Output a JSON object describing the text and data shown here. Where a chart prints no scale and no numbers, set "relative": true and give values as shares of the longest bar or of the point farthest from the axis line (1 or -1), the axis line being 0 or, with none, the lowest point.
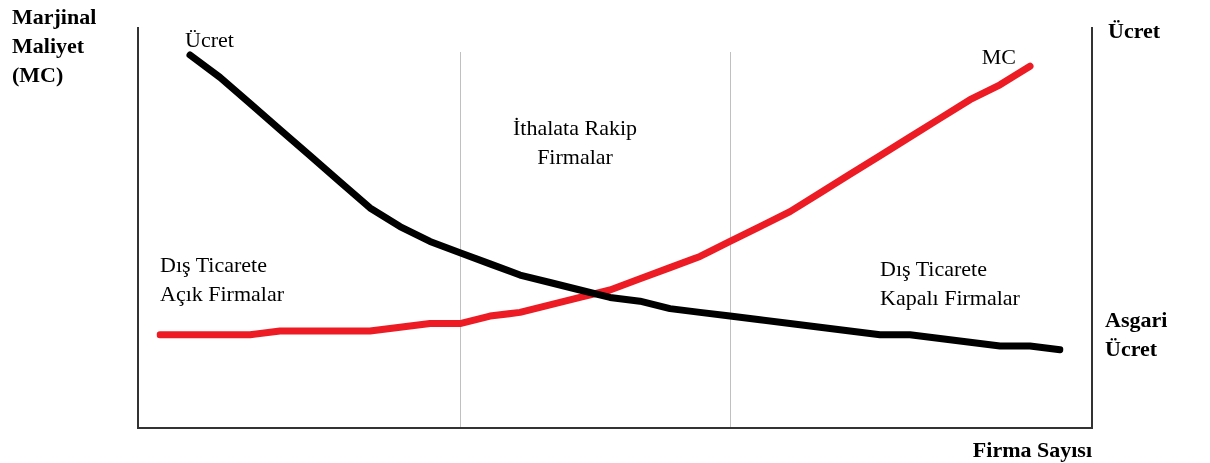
{
  "chart_data": {
    "type": "line",
    "relative": true,
    "xlabel": "Firma Sayısı",
    "ylabel": "Marjinal Maliyet (MC)",
    "y2label": "Ücret",
    "legend": false,
    "marker": "none",
    "line_style": "solid",
    "categories": [
      null,
      null,
      null,
      null,
      null,
      null,
      null,
      null,
      null,
      null,
      null,
      null,
      null,
      null,
      null,
      null,
      null,
      null,
      null,
      null,
      null,
      null,
      null,
      null,
      null,
      null,
      null,
      null,
      null,
      null,
      null
    ],
    "series": [
      {
        "name": "Ücret",
        "color": "#000000",
        "values": [
          null,
          1.0,
          0.94,
          0.87,
          0.8,
          0.73,
          0.66,
          0.59,
          0.54,
          0.5,
          0.47,
          0.44,
          0.41,
          0.39,
          0.37,
          0.35,
          0.34,
          0.32,
          0.31,
          0.3,
          0.29,
          0.28,
          0.27,
          0.26,
          0.25,
          0.25,
          0.24,
          0.23,
          0.22,
          0.22,
          0.21
        ]
      },
      {
        "name": "MC",
        "color": "#ed1c24",
        "values": [
          0.25,
          0.25,
          0.25,
          0.25,
          0.26,
          0.26,
          0.26,
          0.26,
          0.27,
          0.28,
          0.28,
          0.3,
          0.31,
          0.33,
          0.35,
          0.37,
          0.4,
          0.43,
          0.46,
          0.5,
          0.54,
          0.58,
          0.63,
          0.68,
          0.73,
          0.78,
          0.83,
          0.88,
          0.92,
          0.97,
          null
        ]
      }
    ],
    "annotations": [
      "İthalata Rakip Firmalar",
      "Dış Ticarete Açık Firmalar",
      "Dış Ticarete Kapalı Firmalar",
      "Asgari Ücret"
    ]
  }
}
